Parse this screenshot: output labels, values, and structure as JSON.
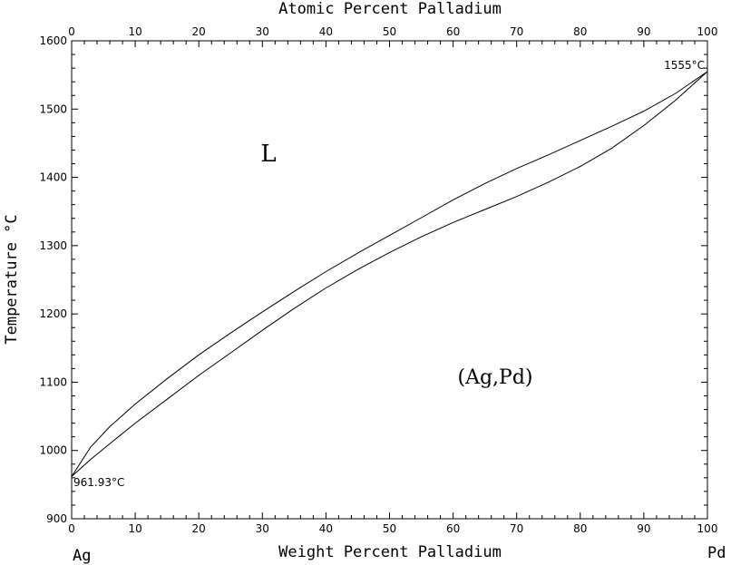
{
  "chart_data": {
    "type": "line",
    "top_axis_label": "Atomic Percent Palladium",
    "xlabel": "Weight Percent Palladium",
    "ylabel": "Temperature °C",
    "xlim": [
      0,
      100
    ],
    "ylim": [
      900,
      1600
    ],
    "x_ticks": [
      0,
      10,
      20,
      30,
      40,
      50,
      60,
      70,
      80,
      90,
      100
    ],
    "y_ticks": [
      900,
      1000,
      1100,
      1200,
      1300,
      1400,
      1500,
      1600
    ],
    "top_ticks": [
      0,
      10,
      20,
      30,
      40,
      50,
      60,
      70,
      80,
      90,
      100
    ],
    "left_element": "Ag",
    "right_element": "Pd",
    "region_labels": [
      {
        "text": "L",
        "x": 31,
        "y": 1434
      },
      {
        "text": "(Ag,Pd)",
        "x": 66,
        "y": 1107
      }
    ],
    "point_labels": [
      {
        "text": "961.93°C",
        "x": 0,
        "y": 961.93
      },
      {
        "text": "1555°C",
        "x": 100,
        "y": 1555
      }
    ],
    "series": [
      {
        "name": "",
        "x": [
          0,
          3,
          6,
          10,
          15,
          20,
          25,
          30,
          35,
          40,
          45,
          50,
          55,
          60,
          65,
          70,
          75,
          80,
          85,
          90,
          95,
          100
        ],
        "y": [
          961.93,
          1005,
          1035,
          1068,
          1105,
          1140,
          1172,
          1203,
          1233,
          1262,
          1289,
          1315,
          1341,
          1367,
          1391,
          1413,
          1433,
          1454,
          1475,
          1497,
          1523,
          1555
        ]
      },
      {
        "name": "",
        "x": [
          0,
          3,
          6,
          10,
          15,
          20,
          25,
          30,
          35,
          40,
          45,
          50,
          55,
          60,
          65,
          70,
          75,
          80,
          85,
          90,
          95,
          100
        ],
        "y": [
          961.93,
          987,
          1010,
          1040,
          1075,
          1110,
          1143,
          1176,
          1208,
          1238,
          1265,
          1290,
          1313,
          1334,
          1353,
          1372,
          1393,
          1416,
          1443,
          1476,
          1513,
          1555
        ]
      }
    ]
  }
}
